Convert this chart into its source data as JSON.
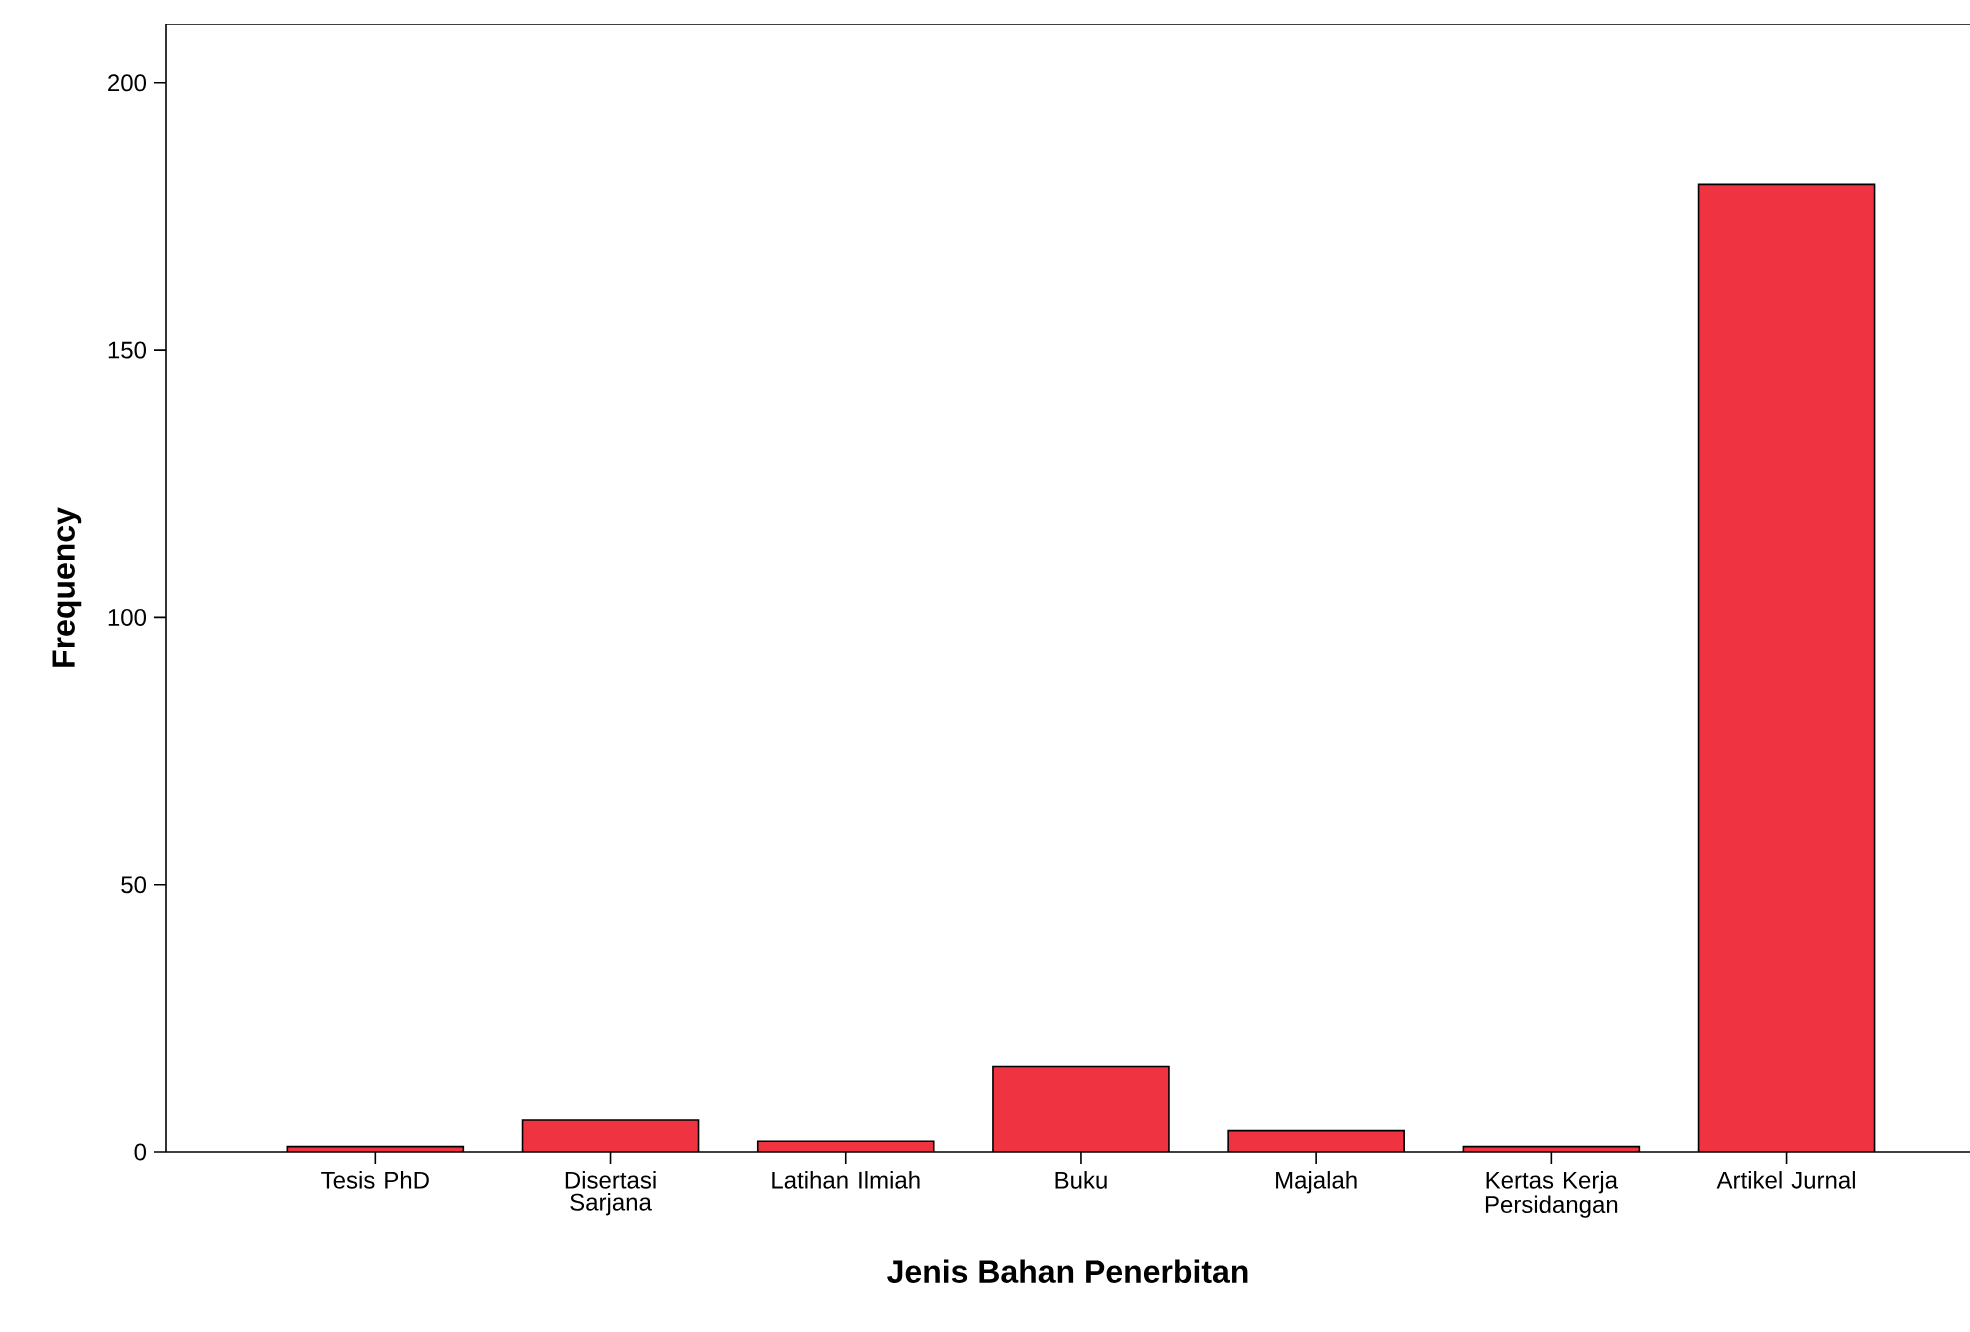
{
  "chart_data": {
    "type": "bar",
    "xlabel": "Jenis Bahan Penerbitan",
    "ylabel": "Frequency",
    "categories": [
      "Tesis PhD",
      "Disertasi Sarjana",
      "Latihan Ilmiah",
      "Buku",
      "Majalah",
      "Kertas Kerja Persidangan",
      "Artikel Jurnal"
    ],
    "values": [
      1,
      6,
      2,
      16,
      4,
      1,
      181
    ],
    "color": "#ef3340",
    "ylim": [
      0,
      211
    ],
    "yticks": [
      0,
      50,
      100,
      150,
      200
    ],
    "grid": false
  }
}
